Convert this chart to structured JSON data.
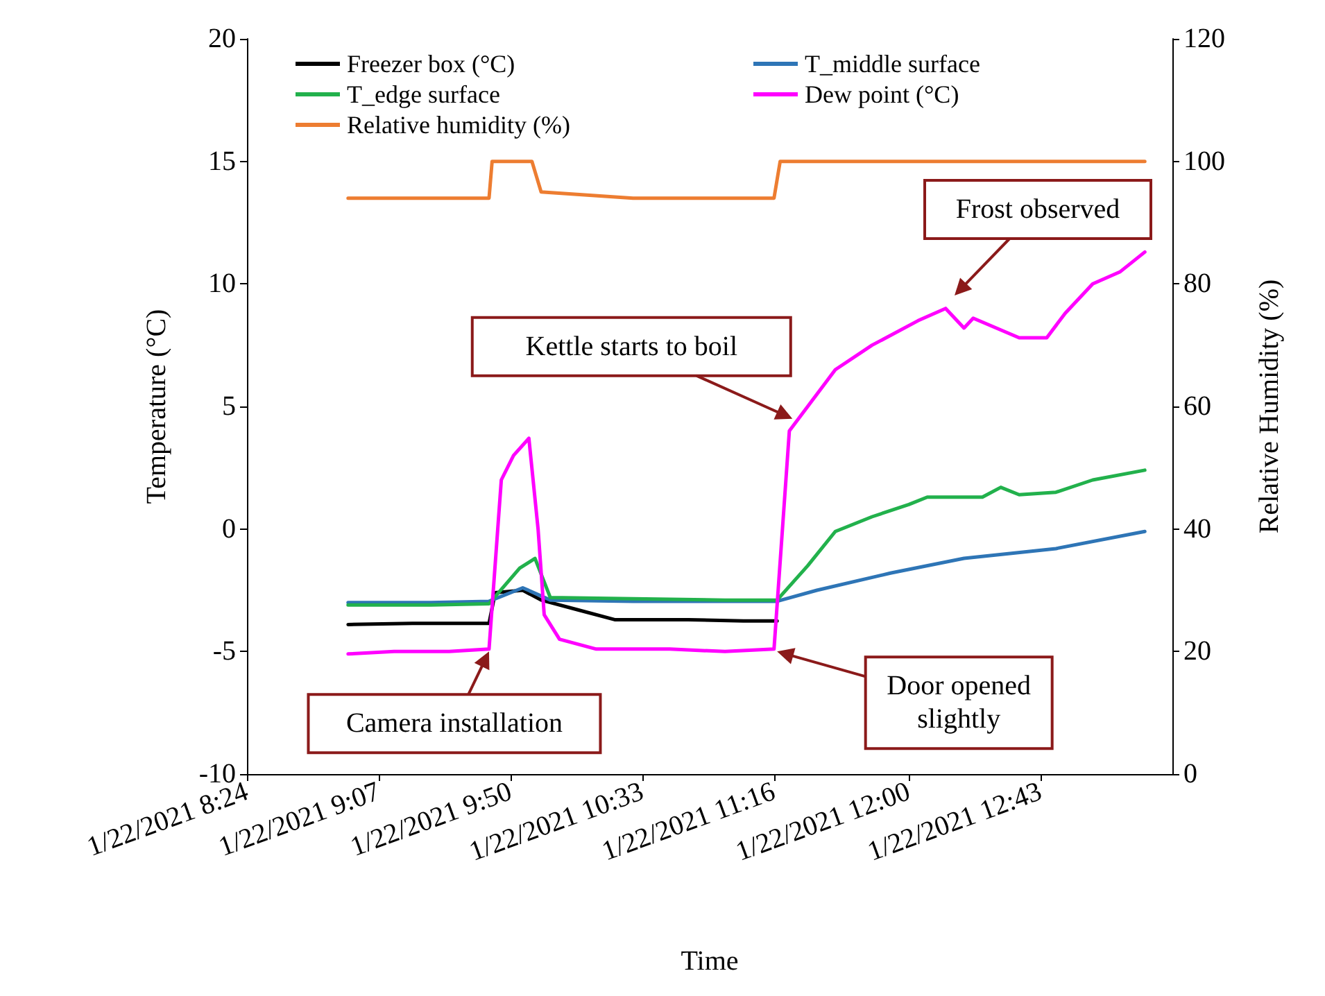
{
  "chart_data": {
    "type": "line",
    "xlabel": "Time",
    "ylabel": "Temperature (°C)",
    "y2label": "Relative Humidity (%)",
    "xlim": [
      "2021-01-22T08:24",
      "2021-01-22T13:26"
    ],
    "xticks": [
      {
        "value": "2021-01-22T08:24",
        "label": "1/22/2021 8:24"
      },
      {
        "value": "2021-01-22T09:07",
        "label": "1/22/2021 9:07"
      },
      {
        "value": "2021-01-22T09:50",
        "label": "1/22/2021 9:50"
      },
      {
        "value": "2021-01-22T10:33",
        "label": "1/22/2021 10:33"
      },
      {
        "value": "2021-01-22T11:16",
        "label": "1/22/2021 11:16"
      },
      {
        "value": "2021-01-22T12:00",
        "label": "1/22/2021 12:00"
      },
      {
        "value": "2021-01-22T12:43",
        "label": "1/22/2021 12:43"
      }
    ],
    "ylim": [
      -10,
      20
    ],
    "yticks": [
      -10,
      -5,
      0,
      5,
      10,
      15,
      20
    ],
    "y2lim": [
      0,
      120
    ],
    "y2ticks": [
      0,
      20,
      40,
      60,
      80,
      100,
      120
    ],
    "grid": false,
    "legend": "top left",
    "marker": "none",
    "line_style": "solid",
    "series": [
      {
        "name": "Freezer box (°C)",
        "color": "#000000",
        "x": [
          "2021-01-22T08:57",
          "2021-01-22T09:18",
          "2021-01-22T09:43",
          "2021-01-22T09:45",
          "2021-01-22T09:54",
          "2021-01-22T10:00",
          "2021-01-22T10:12",
          "2021-01-22T10:24",
          "2021-01-22T10:48",
          "2021-01-22T11:06",
          "2021-01-22T11:17"
        ],
        "values": [
          -3.9,
          -3.85,
          -3.85,
          -2.6,
          -2.5,
          -2.9,
          -3.3,
          -3.7,
          -3.7,
          -3.75,
          -3.75
        ]
      },
      {
        "name": "T_middle surface",
        "color": "#2e75b6",
        "x": [
          "2021-01-22T08:57",
          "2021-01-22T09:24",
          "2021-01-22T09:43",
          "2021-01-22T09:54",
          "2021-01-22T10:03",
          "2021-01-22T10:30",
          "2021-01-22T11:00",
          "2021-01-22T11:17",
          "2021-01-22T11:30",
          "2021-01-22T11:54",
          "2021-01-22T12:18",
          "2021-01-22T12:48",
          "2021-01-22T13:17"
        ],
        "values": [
          -3.0,
          -3.0,
          -2.95,
          -2.4,
          -2.9,
          -2.95,
          -2.95,
          -2.95,
          -2.5,
          -1.8,
          -1.2,
          -0.8,
          -0.1
        ]
      },
      {
        "name": "T_edge surface",
        "color": "#22b14c",
        "x": [
          "2021-01-22T08:57",
          "2021-01-22T09:24",
          "2021-01-22T09:43",
          "2021-01-22T09:53",
          "2021-01-22T09:58",
          "2021-01-22T10:03",
          "2021-01-22T10:30",
          "2021-01-22T11:00",
          "2021-01-22T11:17",
          "2021-01-22T11:27",
          "2021-01-22T11:36",
          "2021-01-22T11:48",
          "2021-01-22T12:00",
          "2021-01-22T12:06",
          "2021-01-22T12:24",
          "2021-01-22T12:30",
          "2021-01-22T12:36",
          "2021-01-22T12:48",
          "2021-01-22T13:00",
          "2021-01-22T13:17"
        ],
        "values": [
          -3.1,
          -3.1,
          -3.05,
          -1.6,
          -1.2,
          -2.8,
          -2.85,
          -2.9,
          -2.9,
          -1.5,
          -0.1,
          0.5,
          1.0,
          1.3,
          1.3,
          1.7,
          1.4,
          1.5,
          2.0,
          2.4
        ]
      },
      {
        "name": "Dew point (°C)",
        "color": "#ff00ff",
        "x": [
          "2021-01-22T08:57",
          "2021-01-22T09:12",
          "2021-01-22T09:30",
          "2021-01-22T09:43",
          "2021-01-22T09:47",
          "2021-01-22T09:51",
          "2021-01-22T09:56",
          "2021-01-22T09:59",
          "2021-01-22T10:01",
          "2021-01-22T10:06",
          "2021-01-22T10:18",
          "2021-01-22T10:42",
          "2021-01-22T11:00",
          "2021-01-22T11:16",
          "2021-01-22T11:21",
          "2021-01-22T11:27",
          "2021-01-22T11:36",
          "2021-01-22T11:48",
          "2021-01-22T12:03",
          "2021-01-22T12:12",
          "2021-01-22T12:18",
          "2021-01-22T12:21",
          "2021-01-22T12:36",
          "2021-01-22T12:45",
          "2021-01-22T12:51",
          "2021-01-22T13:00",
          "2021-01-22T13:09",
          "2021-01-22T13:17"
        ],
        "values": [
          -5.1,
          -5.0,
          -5.0,
          -4.9,
          2.0,
          3.0,
          3.7,
          0.0,
          -3.5,
          -4.5,
          -4.9,
          -4.9,
          -5.0,
          -4.9,
          4.0,
          5.0,
          6.5,
          7.5,
          8.5,
          9.0,
          8.2,
          8.6,
          7.8,
          7.8,
          8.8,
          10.0,
          10.5,
          11.3
        ]
      },
      {
        "name": "Relative humidity (%)",
        "color": "#ed7d31",
        "axis": "y2",
        "x": [
          "2021-01-22T08:57",
          "2021-01-22T09:18",
          "2021-01-22T09:43",
          "2021-01-22T09:44",
          "2021-01-22T09:57",
          "2021-01-22T10:00",
          "2021-01-22T10:30",
          "2021-01-22T11:16",
          "2021-01-22T11:18",
          "2021-01-22T13:17"
        ],
        "values": [
          94,
          94,
          94,
          100,
          100,
          95,
          94,
          94,
          100,
          100
        ]
      }
    ],
    "annotations": [
      {
        "text": "Camera installation",
        "x": "2021-01-22T09:43",
        "y": -5
      },
      {
        "text": "Kettle starts to boil",
        "x": "2021-01-22T11:22",
        "y": 4.5
      },
      "Frost observed",
      {
        "text": "Door opened\nslightly",
        "x": "2021-01-22T11:17",
        "y": -5
      }
    ]
  }
}
